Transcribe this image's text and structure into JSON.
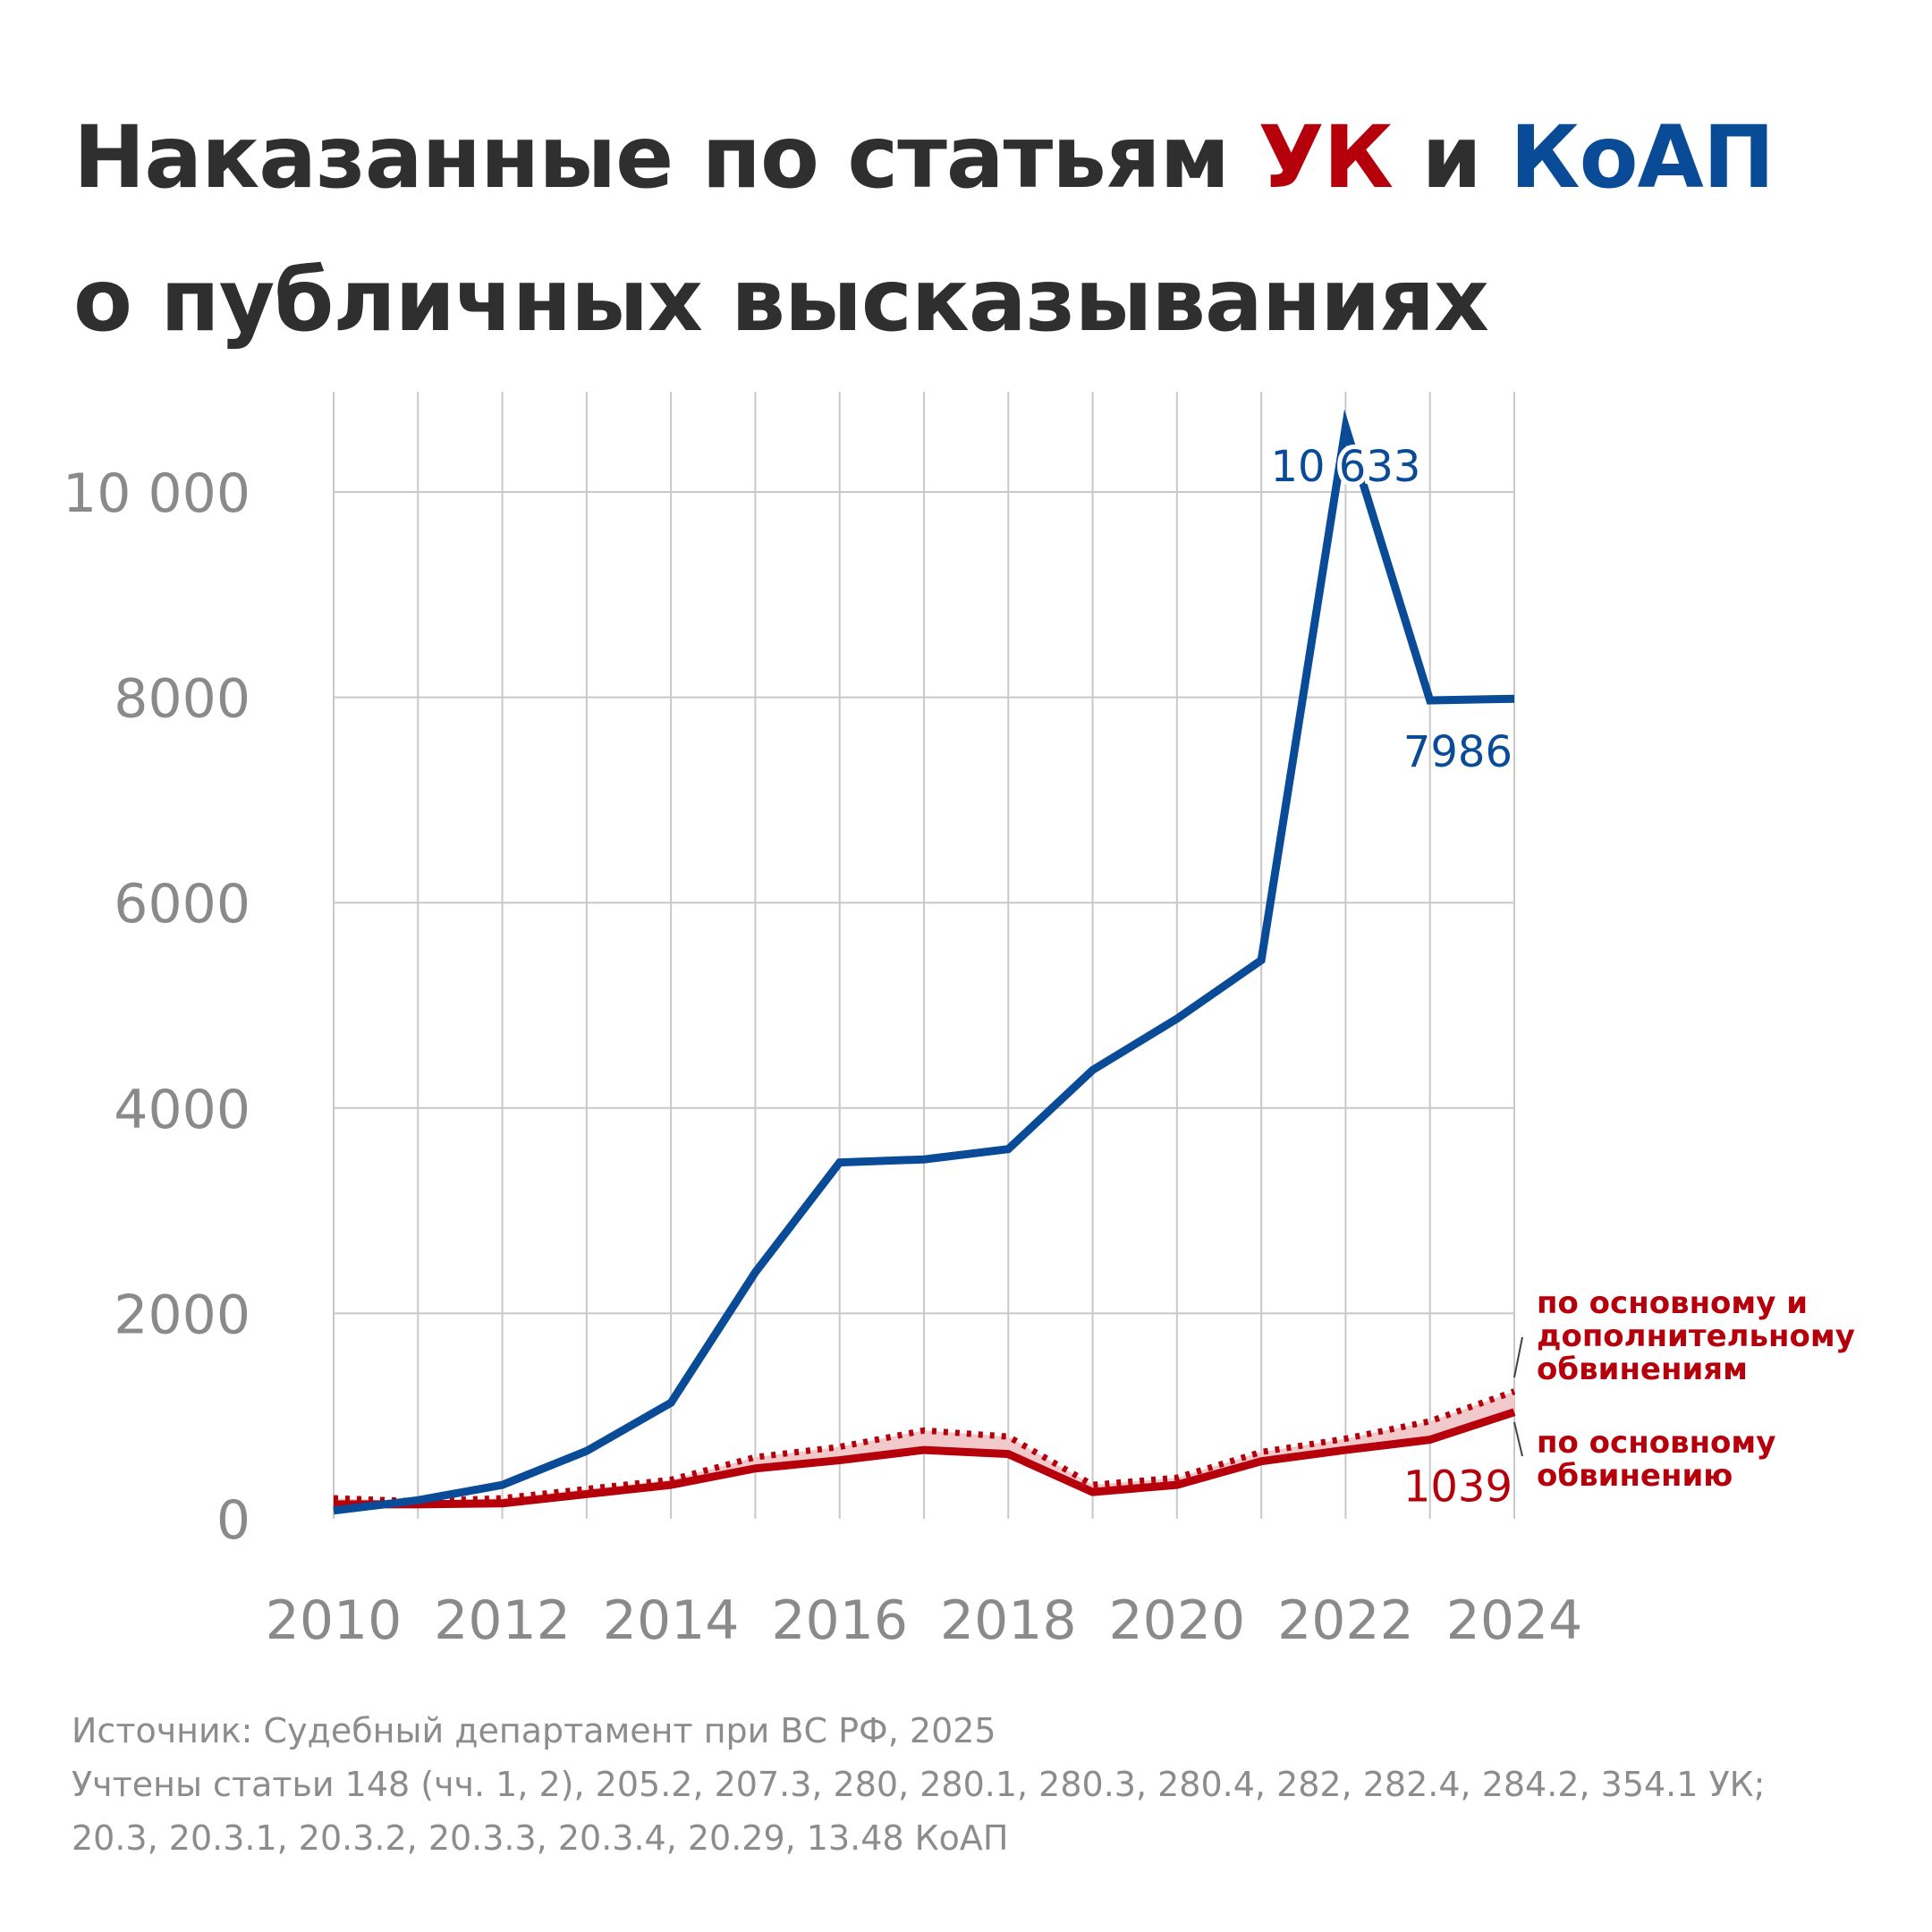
{
  "title": {
    "line1_a": "Наказанные по статьям ",
    "line1_uk": "УК",
    "line1_mid": " и ",
    "line1_koap": "КоАП",
    "line2": "о публичных высказываниях"
  },
  "colors": {
    "koap": "#0a4b97",
    "uk": "#b5000b",
    "uk_band": "#f2c9cb",
    "grid": "#c8c8c8",
    "axis_text": "#8a8a8a"
  },
  "chart_data": {
    "type": "line",
    "x": [
      2010,
      2011,
      2012,
      2013,
      2014,
      2015,
      2016,
      2017,
      2018,
      2019,
      2020,
      2021,
      2022,
      2023,
      2024
    ],
    "xlim": [
      2010,
      2024
    ],
    "ylim": [
      0,
      11000
    ],
    "x_ticks": [
      2010,
      2012,
      2014,
      2016,
      2018,
      2020,
      2022,
      2024
    ],
    "x_tick_labels": [
      "2010",
      "2012",
      "2014",
      "2016",
      "2018",
      "2020",
      "2022",
      "2024"
    ],
    "y_ticks": [
      0,
      2000,
      4000,
      6000,
      8000,
      10000
    ],
    "y_tick_labels": [
      "0",
      "2000",
      "4000",
      "6000",
      "8000",
      "10 000"
    ],
    "grid": true,
    "series": [
      {
        "key": "koap",
        "values": [
          80,
          180,
          330,
          660,
          1130,
          2400,
          3470,
          3500,
          3600,
          4370,
          4870,
          5440,
          10633,
          7970,
          7986
        ],
        "style": "solid"
      },
      {
        "key": "uk_main",
        "name": "по основному обвинению",
        "values": [
          140,
          140,
          150,
          240,
          330,
          490,
          570,
          670,
          630,
          260,
          330,
          560,
          670,
          770,
          1039
        ],
        "style": "solid"
      },
      {
        "key": "uk_total",
        "name": "по основному и дополнительному обвинениям",
        "values": [
          200,
          170,
          200,
          290,
          380,
          600,
          700,
          860,
          800,
          330,
          400,
          650,
          780,
          950,
          1240
        ],
        "style": "dotted"
      }
    ],
    "annotations": [
      {
        "series": "koap",
        "x": 2022,
        "text": "10 633"
      },
      {
        "series": "koap",
        "x": 2024,
        "text": "7986"
      },
      {
        "series": "uk_main",
        "x": 2024,
        "text": "1039"
      }
    ],
    "legend": {
      "placement": "right",
      "total_label": [
        "по основному и",
        "дополнительному",
        "обвинениям"
      ],
      "main_label": [
        "по основному",
        "обвинению"
      ]
    }
  },
  "source": {
    "line1": "Источник: Судебный департамент при ВС РФ, 2025",
    "line2": "Учтены статьи 148 (чч. 1, 2), 205.2, 207.3, 280, 280.1, 280.3, 280.4, 282, 282.4, 284.2, 354.1 УК;",
    "line3": "20.3, 20.3.1, 20.3.2, 20.3.3, 20.3.4, 20.29, 13.48 КоАП"
  }
}
